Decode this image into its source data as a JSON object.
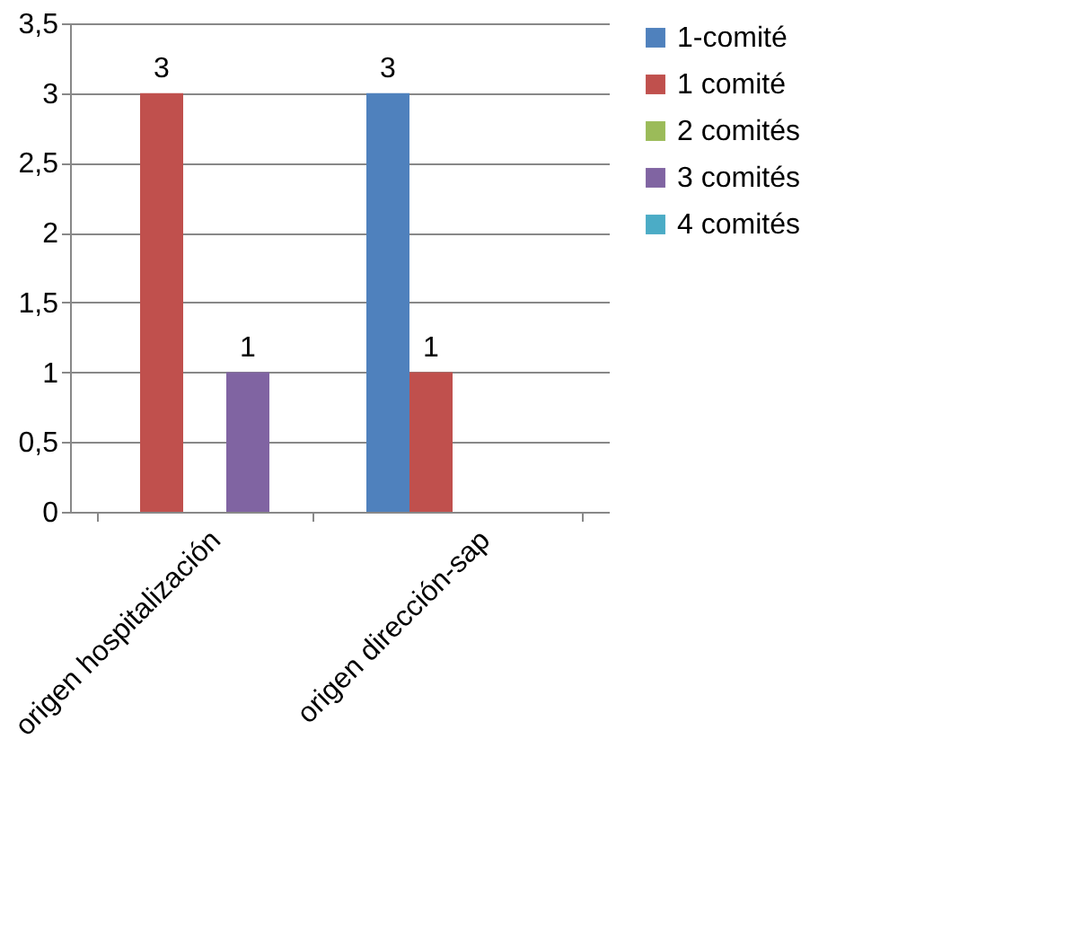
{
  "chart_data": {
    "type": "bar",
    "categories": [
      "origen hospitalización",
      "origen dirección-sap"
    ],
    "series": [
      {
        "name": "1-comité",
        "color": "#4f81bd",
        "values": [
          null,
          3
        ]
      },
      {
        "name": "1 comité",
        "color": "#c0504d",
        "values": [
          3,
          1
        ]
      },
      {
        "name": "2 comités",
        "color": "#9bbb59",
        "values": [
          null,
          null
        ]
      },
      {
        "name": "3 comités",
        "color": "#8064a2",
        "values": [
          1,
          null
        ]
      },
      {
        "name": "4 comités",
        "color": "#4bacc6",
        "values": [
          null,
          null
        ]
      }
    ],
    "ylim": [
      0,
      3.5
    ],
    "yticks": [
      0,
      {
        "value": 0.5,
        "label": "0,5"
      },
      1,
      {
        "value": 1.5,
        "label": "1,5"
      },
      2,
      {
        "value": 2.5,
        "label": "2,5"
      },
      3,
      {
        "value": 3.5,
        "label": "3,5"
      }
    ],
    "grid": "y",
    "legend": "right",
    "data_labels": true
  }
}
